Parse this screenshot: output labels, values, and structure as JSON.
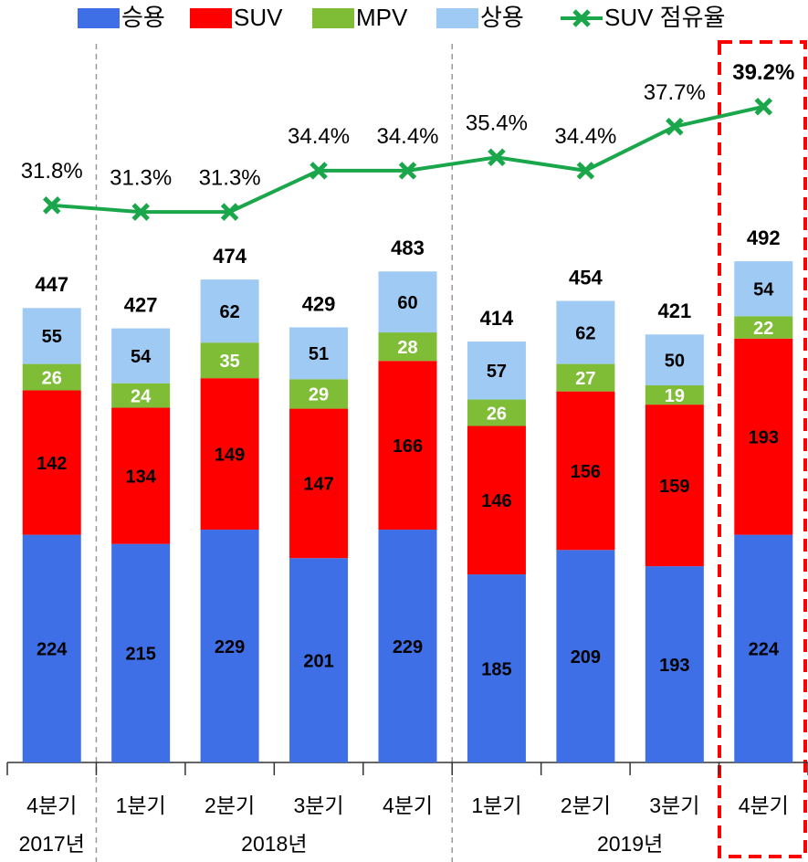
{
  "chart_data": {
    "type": "bar",
    "categories": [
      "4분기",
      "1분기",
      "2분기",
      "3분기",
      "4분기",
      "1분기",
      "2분기",
      "3분기",
      "4분기"
    ],
    "groups": [
      {
        "label": "2017년",
        "from": 0,
        "to": 0
      },
      {
        "label": "2018년",
        "from": 1,
        "to": 4
      },
      {
        "label": "2019년",
        "from": 5,
        "to": 8
      }
    ],
    "series": [
      {
        "name": "승용",
        "color": "#3e6fe6",
        "values": [
          224,
          215,
          229,
          201,
          229,
          185,
          209,
          193,
          224
        ]
      },
      {
        "name": "SUV",
        "color": "#ff0000",
        "values": [
          142,
          134,
          149,
          147,
          166,
          146,
          156,
          159,
          193
        ]
      },
      {
        "name": "MPV",
        "color": "#7ebd35",
        "values": [
          26,
          24,
          35,
          29,
          28,
          26,
          27,
          19,
          22
        ]
      },
      {
        "name": "상용",
        "color": "#9fcaf4",
        "values": [
          55,
          54,
          62,
          51,
          60,
          57,
          62,
          50,
          54
        ]
      },
      {
        "name": "SUV 점유율",
        "type": "line",
        "axis": "y2",
        "color": "#1aa64a",
        "values": [
          31.8,
          31.3,
          31.3,
          34.4,
          34.4,
          35.4,
          34.4,
          37.7,
          39.2
        ],
        "value_labels": [
          "31.8%",
          "31.3%",
          "31.3%",
          "34.4%",
          "34.4%",
          "35.4%",
          "34.4%",
          "37.7%",
          "39.2%"
        ]
      }
    ],
    "totals": [
      447,
      427,
      474,
      429,
      483,
      414,
      454,
      421,
      492
    ],
    "ylim": [
      0,
      750
    ],
    "y2lim": [
      -10,
      47.2
    ]
  }
}
